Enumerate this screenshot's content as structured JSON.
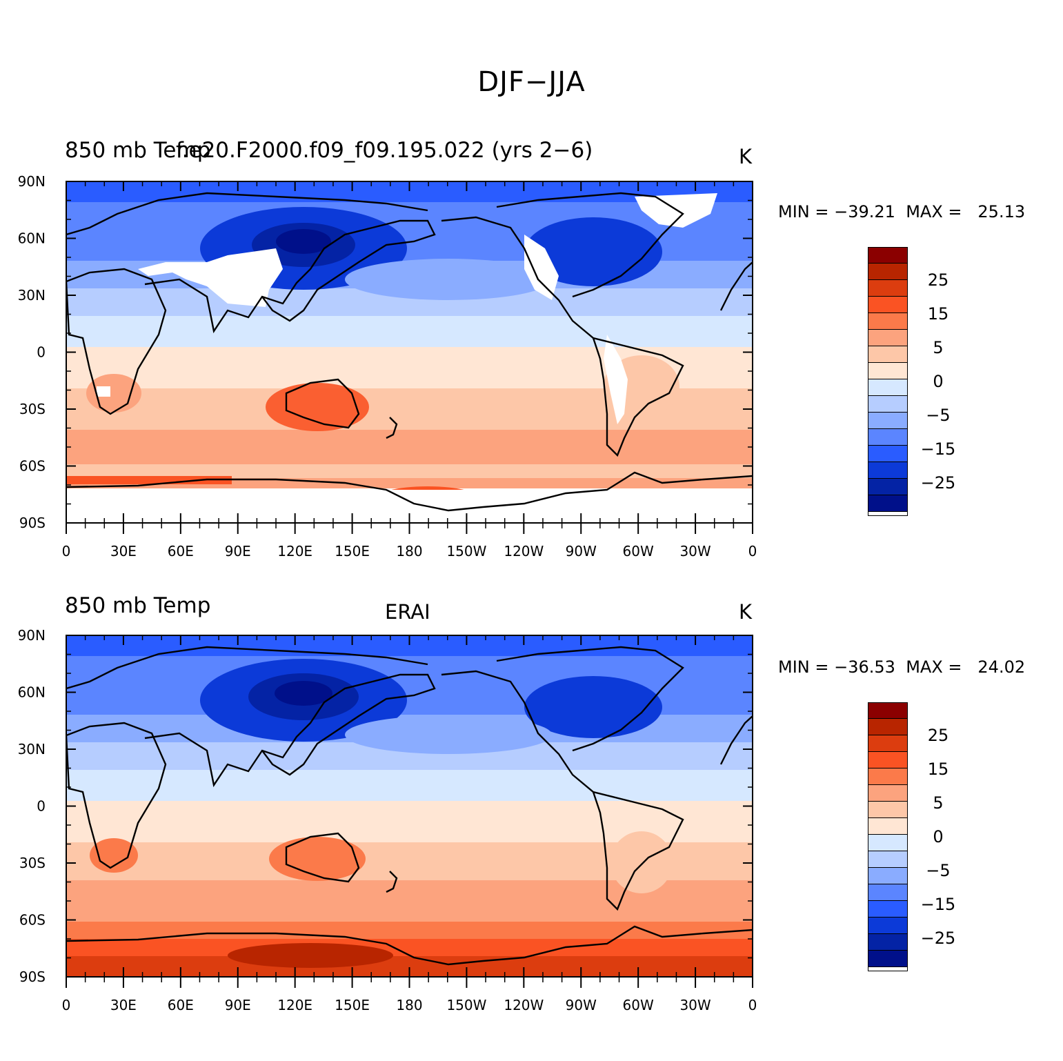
{
  "figure_title": "DJF−JJA",
  "colorbar": {
    "colors": [
      "#8b0000",
      "#b82500",
      "#dc3d0f",
      "#fa5323",
      "#fb7a4a",
      "#fca37e",
      "#fdc7a8",
      "#ffe6d4",
      "#d6e8ff",
      "#b6cdff",
      "#8aacff",
      "#5b85ff",
      "#2a5cff",
      "#0c3ad8",
      "#0423a5",
      "#00108a"
    ],
    "labels": [
      "25",
      "15",
      "5",
      "0",
      "−5",
      "−15",
      "−25"
    ]
  },
  "lat_ticks": [
    "90N",
    "60N",
    "30N",
    "0",
    "30S",
    "60S",
    "90S"
  ],
  "lon_ticks": [
    "0",
    "30E",
    "60E",
    "90E",
    "120E",
    "150E",
    "180",
    "150W",
    "120W",
    "90W",
    "60W",
    "30W",
    "0"
  ],
  "panels": [
    {
      "left_title": "850  mb  Temp",
      "center_title": "f.e20.F2000.f09_f09.195.022 (yrs 2−6)",
      "units": "K",
      "min_label": "MIN = ",
      "min_value": "−39.21",
      "max_label": "MAX = ",
      "max_value": "25.13",
      "missing_data_over_high_terrain": true
    },
    {
      "left_title": "850  mb  Temp",
      "center_title": "ERAI",
      "units": "K",
      "min_label": "MIN = ",
      "min_value": "−36.53",
      "max_label": "MAX = ",
      "max_value": "24.02",
      "missing_data_over_high_terrain": false
    }
  ]
}
